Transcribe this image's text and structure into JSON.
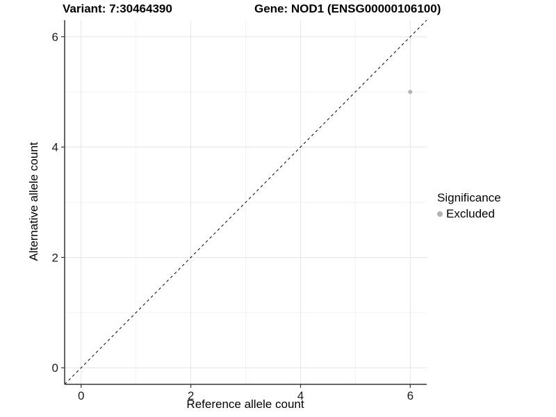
{
  "chart_data": {
    "type": "scatter",
    "title_left": "Variant: 7:30464390",
    "title_right": "Gene: NOD1 (ENSG00000106100)",
    "xlabel": "Reference allele count",
    "ylabel": "Alternative allele count",
    "xlim": [
      -0.3,
      6.3
    ],
    "ylim": [
      -0.3,
      6.3
    ],
    "xticks": [
      0,
      2,
      4,
      6
    ],
    "yticks": [
      0,
      2,
      4,
      6
    ],
    "x_minor_gridlines": [
      1,
      3,
      5
    ],
    "y_minor_gridlines": [
      1,
      3,
      5
    ],
    "grid": true,
    "identity_line": {
      "style": "dashed",
      "color": "#000000",
      "from": [
        -0.3,
        -0.3
      ],
      "to": [
        6.3,
        6.3
      ]
    },
    "series": [
      {
        "name": "Excluded",
        "color": "#b3b3b3",
        "point_radius": 3,
        "points": [
          {
            "x": 6,
            "y": 5
          }
        ]
      }
    ],
    "legend": {
      "title": "Significance",
      "position": "right",
      "entries": [
        {
          "label": "Excluded",
          "color": "#b3b3b3"
        }
      ]
    },
    "colors": {
      "background": "#ffffff",
      "grid_major": "#e4e4e4",
      "grid_minor": "#f2f2f2",
      "axis_line": "#333333",
      "tick_mark": "#333333",
      "tick_text": "#1a1a1a"
    }
  }
}
